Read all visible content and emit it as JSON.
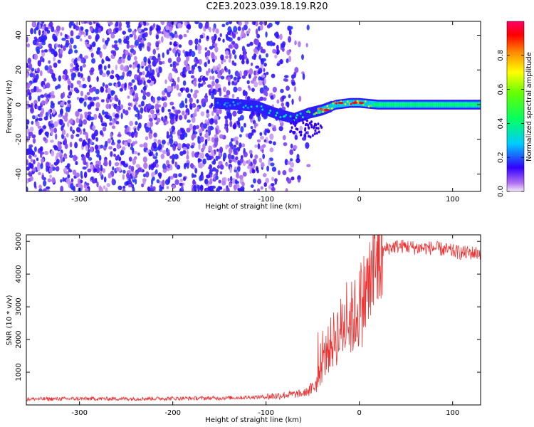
{
  "title": "C2E3.2023.039.18.19.R20",
  "chart_data": [
    {
      "type": "heatmap",
      "xlabel": "Height of straight line (km)",
      "ylabel": "Frequency (Hz)",
      "xlim": [
        -357,
        130
      ],
      "ylim": [
        -50,
        48
      ],
      "xticks": [
        -300,
        -200,
        -100,
        0,
        100
      ],
      "xtick_labels": [
        "-300",
        "-200",
        "-100",
        "0",
        "100"
      ],
      "yticks": [
        -40,
        -20,
        0,
        20,
        40
      ],
      "ytick_labels": [
        "-40",
        "-20",
        "0",
        "20",
        "40"
      ],
      "colorbar": {
        "label": "Normalized spectral amplitude",
        "range": [
          0,
          1
        ],
        "ticks": [
          0.0,
          0.2,
          0.4,
          0.6,
          0.8
        ],
        "tick_labels": [
          "0.0",
          "0.2",
          "0.4",
          "0.6",
          "0.8"
        ],
        "colormap": "hsv-rainbow"
      },
      "features": {
        "noise_region_x": [
          -357,
          -62
        ],
        "signal_track": [
          {
            "x": -155,
            "y": 1,
            "amp": 0.25
          },
          {
            "x": -130,
            "y": 0,
            "amp": 0.3
          },
          {
            "x": -110,
            "y": -1,
            "amp": 0.35
          },
          {
            "x": -90,
            "y": -5,
            "amp": 0.4
          },
          {
            "x": -70,
            "y": -8,
            "amp": 0.45
          },
          {
            "x": -55,
            "y": -5,
            "amp": 0.5
          },
          {
            "x": -40,
            "y": -3,
            "amp": 0.85
          },
          {
            "x": -25,
            "y": 0,
            "amp": 0.9
          },
          {
            "x": -10,
            "y": 1,
            "amp": 0.95
          },
          {
            "x": 0,
            "y": 1,
            "amp": 0.9
          },
          {
            "x": 20,
            "y": 0,
            "amp": 0.5
          },
          {
            "x": 60,
            "y": 0,
            "amp": 0.45
          },
          {
            "x": 100,
            "y": 0,
            "amp": 0.45
          },
          {
            "x": 130,
            "y": 0,
            "amp": 0.45
          }
        ]
      }
    },
    {
      "type": "line",
      "xlabel": "Height of straight line (km)",
      "ylabel": "SNR (10 * v/v)",
      "xlim": [
        -357,
        130
      ],
      "ylim": [
        0,
        5200
      ],
      "xticks": [
        -300,
        -200,
        -100,
        0,
        100
      ],
      "xtick_labels": [
        "-300",
        "-200",
        "-100",
        "0",
        "100"
      ],
      "yticks": [
        1000,
        2000,
        3000,
        4000,
        5000
      ],
      "ytick_labels": [
        "1000",
        "2000",
        "3000",
        "4000",
        "5000"
      ],
      "series": [
        {
          "color": "#ee3333",
          "x": [
            -357,
            -300,
            -250,
            -200,
            -150,
            -120,
            -100,
            -80,
            -60,
            -50,
            -45,
            -40,
            -35,
            -30,
            -25,
            -20,
            -15,
            -10,
            -5,
            0,
            5,
            10,
            15,
            20,
            25,
            30,
            40,
            50,
            60,
            70,
            80,
            90,
            100,
            110,
            120,
            130
          ],
          "y": [
            180,
            190,
            190,
            200,
            210,
            230,
            250,
            300,
            350,
            500,
            700,
            1200,
            1600,
            1900,
            2100,
            2300,
            2500,
            2600,
            2700,
            3000,
            3300,
            3600,
            4000,
            4400,
            4700,
            4800,
            4850,
            4850,
            4800,
            4800,
            4800,
            4750,
            4700,
            4650,
            4650,
            4650
          ]
        }
      ]
    }
  ]
}
